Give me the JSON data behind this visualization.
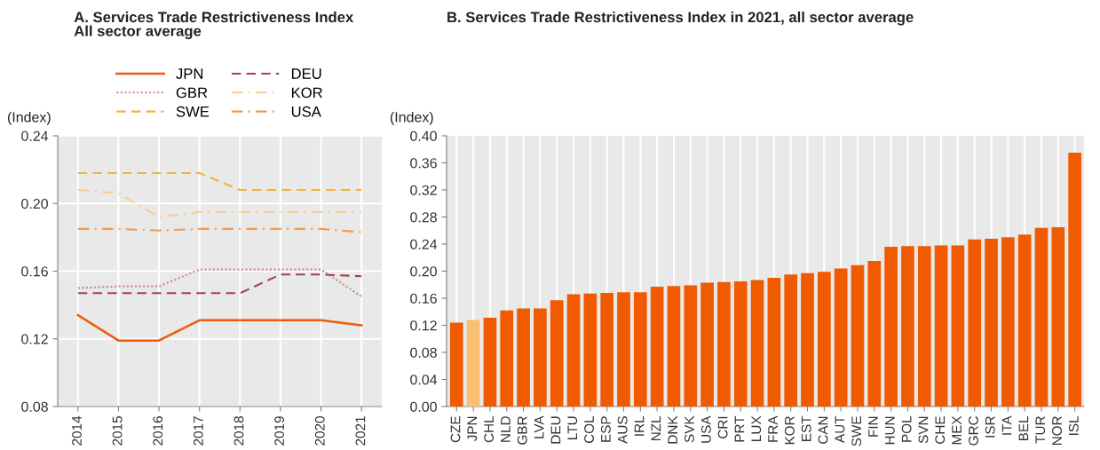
{
  "chart_data": [
    {
      "type": "line",
      "title": "A. Services Trade Restrictiveness Index\nAll sector average",
      "ylabel": "(Index)",
      "categories": [
        "2014",
        "2015",
        "2016",
        "2017",
        "2018",
        "2019",
        "2020",
        "2021"
      ],
      "ylim": [
        0.08,
        0.24
      ],
      "yticks": [
        {
          "value": 0.08,
          "label": "0.08"
        },
        {
          "value": 0.12,
          "label": "0.12"
        },
        {
          "value": 0.16,
          "label": "0.16"
        },
        {
          "value": 0.2,
          "label": "0.20"
        },
        {
          "value": 0.24,
          "label": "0.24"
        }
      ],
      "grid": true,
      "legend": "top",
      "series": [
        {
          "name": "JPN",
          "color": "#f05a0a",
          "line_style": "solid",
          "values": [
            0.134,
            0.119,
            0.119,
            0.131,
            0.131,
            0.131,
            0.131,
            0.128
          ]
        },
        {
          "name": "GBR",
          "color": "#c88a8a",
          "line_style": "dotted",
          "values": [
            0.15,
            0.151,
            0.151,
            0.161,
            0.161,
            0.161,
            0.161,
            0.145
          ]
        },
        {
          "name": "SWE",
          "color": "#f5b335",
          "line_style": "dashed",
          "values": [
            0.218,
            0.218,
            0.218,
            0.218,
            0.208,
            0.208,
            0.208,
            0.208
          ]
        },
        {
          "name": "DEU",
          "color": "#a3424c",
          "line_style": "dashed",
          "values": [
            0.147,
            0.147,
            0.147,
            0.147,
            0.147,
            0.158,
            0.158,
            0.157
          ]
        },
        {
          "name": "KOR",
          "color": "#f8cc90",
          "line_style": "dashdot",
          "values": [
            0.208,
            0.206,
            0.192,
            0.195,
            0.195,
            0.195,
            0.195,
            0.195
          ]
        },
        {
          "name": "USA",
          "color": "#f09a50",
          "line_style": "dashdot",
          "values": [
            0.185,
            0.185,
            0.184,
            0.185,
            0.185,
            0.185,
            0.185,
            0.183
          ]
        }
      ]
    },
    {
      "type": "bar",
      "title": "B. Services Trade Restrictiveness Index in 2021, all sector average",
      "ylabel": "(Index)",
      "categories": [
        "CZE",
        "JPN",
        "CHL",
        "NLD",
        "GBR",
        "LVA",
        "DEU",
        "LTU",
        "COL",
        "ESP",
        "AUS",
        "IRL",
        "NZL",
        "DNK",
        "SVK",
        "USA",
        "CRI",
        "PRT",
        "LUX",
        "FRA",
        "KOR",
        "EST",
        "CAN",
        "AUT",
        "SWE",
        "FIN",
        "HUN",
        "POL",
        "SVN",
        "CHE",
        "MEX",
        "GRC",
        "ISR",
        "ITA",
        "BEL",
        "TUR",
        "NOR",
        "ISL"
      ],
      "values": [
        0.124,
        0.128,
        0.131,
        0.142,
        0.145,
        0.145,
        0.157,
        0.166,
        0.167,
        0.168,
        0.169,
        0.169,
        0.177,
        0.178,
        0.179,
        0.183,
        0.184,
        0.185,
        0.187,
        0.19,
        0.195,
        0.197,
        0.199,
        0.204,
        0.209,
        0.215,
        0.236,
        0.237,
        0.237,
        0.238,
        0.238,
        0.247,
        0.248,
        0.25,
        0.254,
        0.264,
        0.265,
        0.375
      ],
      "colors": [
        "#f05a00",
        "#fbbf72",
        "#f05a00",
        "#f05a00",
        "#f05a00",
        "#f05a00",
        "#f05a00",
        "#f05a00",
        "#f05a00",
        "#f05a00",
        "#f05a00",
        "#f05a00",
        "#f05a00",
        "#f05a00",
        "#f05a00",
        "#f05a00",
        "#f05a00",
        "#f05a00",
        "#f05a00",
        "#f05a00",
        "#f05a00",
        "#f05a00",
        "#f05a00",
        "#f05a00",
        "#f05a00",
        "#f05a00",
        "#f05a00",
        "#f05a00",
        "#f05a00",
        "#f05a00",
        "#f05a00",
        "#f05a00",
        "#f05a00",
        "#f05a00",
        "#f05a00",
        "#f05a00",
        "#f05a00",
        "#f05a00"
      ],
      "ylim": [
        0,
        0.4
      ],
      "yticks": [
        {
          "value": 0,
          "label": "0.00"
        },
        {
          "value": 0.04,
          "label": "0.04"
        },
        {
          "value": 0.08,
          "label": "0.08"
        },
        {
          "value": 0.12,
          "label": "0.12"
        },
        {
          "value": 0.16,
          "label": "0.16"
        },
        {
          "value": 0.2,
          "label": "0.20"
        },
        {
          "value": 0.24,
          "label": "0.24"
        },
        {
          "value": 0.28,
          "label": "0.28"
        },
        {
          "value": 0.32,
          "label": "0.32"
        },
        {
          "value": 0.36,
          "label": "0.36"
        },
        {
          "value": 0.4,
          "label": "0.40"
        }
      ],
      "grid": "x"
    }
  ]
}
